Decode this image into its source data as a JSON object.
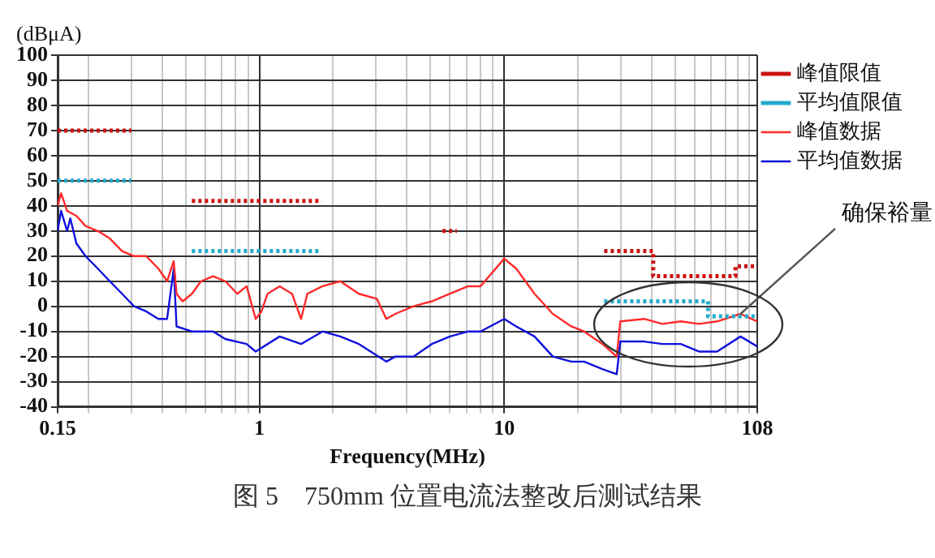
{
  "chart_data": {
    "type": "line",
    "title": "图 5　750mm 位置电流法整改后测试结果",
    "xlabel": "Frequency(MHz)",
    "ylabel": "(dBμA)",
    "annotations": [
      {
        "text": "确保裕量",
        "x": 92.3,
        "y": -3
      }
    ],
    "log": "x",
    "grid": true,
    "legend": "top right",
    "marker": "none",
    "xlim": [
      0.15,
      108
    ],
    "ylim": [
      -40,
      100
    ],
    "xticks": [
      0.15,
      {
        "value": 0.2,
        "label": null
      },
      {
        "value": 0.3,
        "label": null
      },
      {
        "value": 0.4,
        "label": null
      },
      {
        "value": 0.5,
        "label": null
      },
      {
        "value": 0.6,
        "label": null
      },
      {
        "value": 0.7,
        "label": null
      },
      {
        "value": 0.8,
        "label": null
      },
      {
        "value": 0.9,
        "label": null
      },
      1,
      {
        "value": 2,
        "label": null
      },
      {
        "value": 3,
        "label": null
      },
      {
        "value": 4,
        "label": null
      },
      {
        "value": 5,
        "label": null
      },
      {
        "value": 6,
        "label": null
      },
      {
        "value": 7,
        "label": null
      },
      {
        "value": 8,
        "label": null
      },
      {
        "value": 9,
        "label": null
      },
      10,
      {
        "value": 20,
        "label": null
      },
      {
        "value": 30,
        "label": null
      },
      {
        "value": 40,
        "label": null
      },
      {
        "value": 50,
        "label": null
      },
      {
        "value": 60,
        "label": null
      },
      {
        "value": 70,
        "label": null
      },
      {
        "value": 80,
        "label": null
      },
      {
        "value": 90,
        "label": null
      },
      {
        "value": 100,
        "label": null
      },
      108
    ],
    "yticks": [
      -40,
      -30,
      -20,
      -10,
      0,
      10,
      20,
      30,
      40,
      50,
      60,
      70,
      80,
      90,
      100
    ],
    "series": [
      {
        "name": "峰值限值",
        "type": "line",
        "line_style": "dotted",
        "color": "#cc1111",
        "x": [
          0.15,
          0.3,
          0.31,
          0.53,
          1.8,
          1.81,
          5.6,
          6.4,
          6.41,
          25.6,
          40.6,
          40.6,
          88,
          88,
          108
        ],
        "values": [
          70,
          70,
          null,
          42,
          42,
          null,
          30,
          30,
          null,
          22,
          22,
          12,
          12,
          16,
          16
        ]
      },
      {
        "name": "平均值限值",
        "type": "line",
        "line_style": "dotted",
        "color": "#22aacc",
        "x": [
          0.15,
          0.3,
          0.31,
          0.53,
          1.8,
          1.81,
          25.6,
          68,
          68,
          108
        ],
        "values": [
          50,
          50,
          null,
          22,
          22,
          null,
          2,
          2,
          -4,
          -4
        ]
      },
      {
        "name": "峰值数据",
        "type": "line",
        "line_style": "solid",
        "color": "#ff2a2a",
        "x": [
          0.15,
          0.155,
          0.164,
          0.179,
          0.195,
          0.219,
          0.245,
          0.275,
          0.308,
          0.345,
          0.387,
          0.42,
          0.447,
          0.459,
          0.486,
          0.53,
          0.578,
          0.647,
          0.726,
          0.813,
          0.887,
          0.966,
          1.02,
          1.08,
          1.21,
          1.36,
          1.48,
          1.57,
          1.81,
          2.14,
          2.55,
          3.02,
          3.3,
          3.59,
          4.26,
          5.06,
          6.0,
          7.12,
          8,
          10,
          11.2,
          13.3,
          15.8,
          18.8,
          21.2,
          25.2,
          28.8,
          29.8,
          37.3,
          44.2,
          52.6,
          62.4,
          74,
          92.3,
          108
        ],
        "values": [
          40,
          45,
          38,
          36,
          32,
          30,
          27,
          22,
          20,
          20,
          15,
          10,
          18,
          5,
          2,
          5,
          10,
          12,
          10,
          5,
          8,
          -5,
          -2,
          5,
          8,
          5,
          -5,
          5,
          8,
          10,
          5,
          3,
          -5,
          -3,
          0,
          2,
          5,
          8,
          8,
          19,
          15,
          5,
          -3,
          -8,
          -10,
          -15,
          -20,
          -6,
          -5,
          -7,
          -6,
          -7,
          -6,
          -3,
          -6
        ]
      },
      {
        "name": "平均值数据",
        "type": "line",
        "line_style": "solid",
        "color": "#1010dd",
        "x": [
          0.15,
          0.155,
          0.164,
          0.169,
          0.179,
          0.195,
          0.219,
          0.245,
          0.275,
          0.308,
          0.345,
          0.387,
          0.42,
          0.447,
          0.459,
          0.53,
          0.647,
          0.726,
          0.887,
          0.966,
          1.21,
          1.48,
          1.81,
          2.14,
          2.55,
          3.3,
          3.59,
          4.26,
          5.06,
          6.0,
          7.12,
          8,
          10,
          11.2,
          13.3,
          15.8,
          18.8,
          21.2,
          25.2,
          28.8,
          29.8,
          37.3,
          44.2,
          52.6,
          62.4,
          74,
          92.3,
          108
        ],
        "values": [
          30,
          38,
          30,
          35,
          25,
          20,
          15,
          10,
          5,
          0,
          -2,
          -5,
          -5,
          15,
          -8,
          -10,
          -10,
          -13,
          -15,
          -18,
          -12,
          -15,
          -10,
          -12,
          -15,
          -22,
          -20,
          -20,
          -15,
          -12,
          -10,
          -10,
          -5,
          -8,
          -12,
          -20,
          -22,
          -22,
          -25,
          -27,
          -14,
          -14,
          -15,
          -15,
          -18,
          -18,
          -12,
          -16
        ]
      }
    ]
  }
}
